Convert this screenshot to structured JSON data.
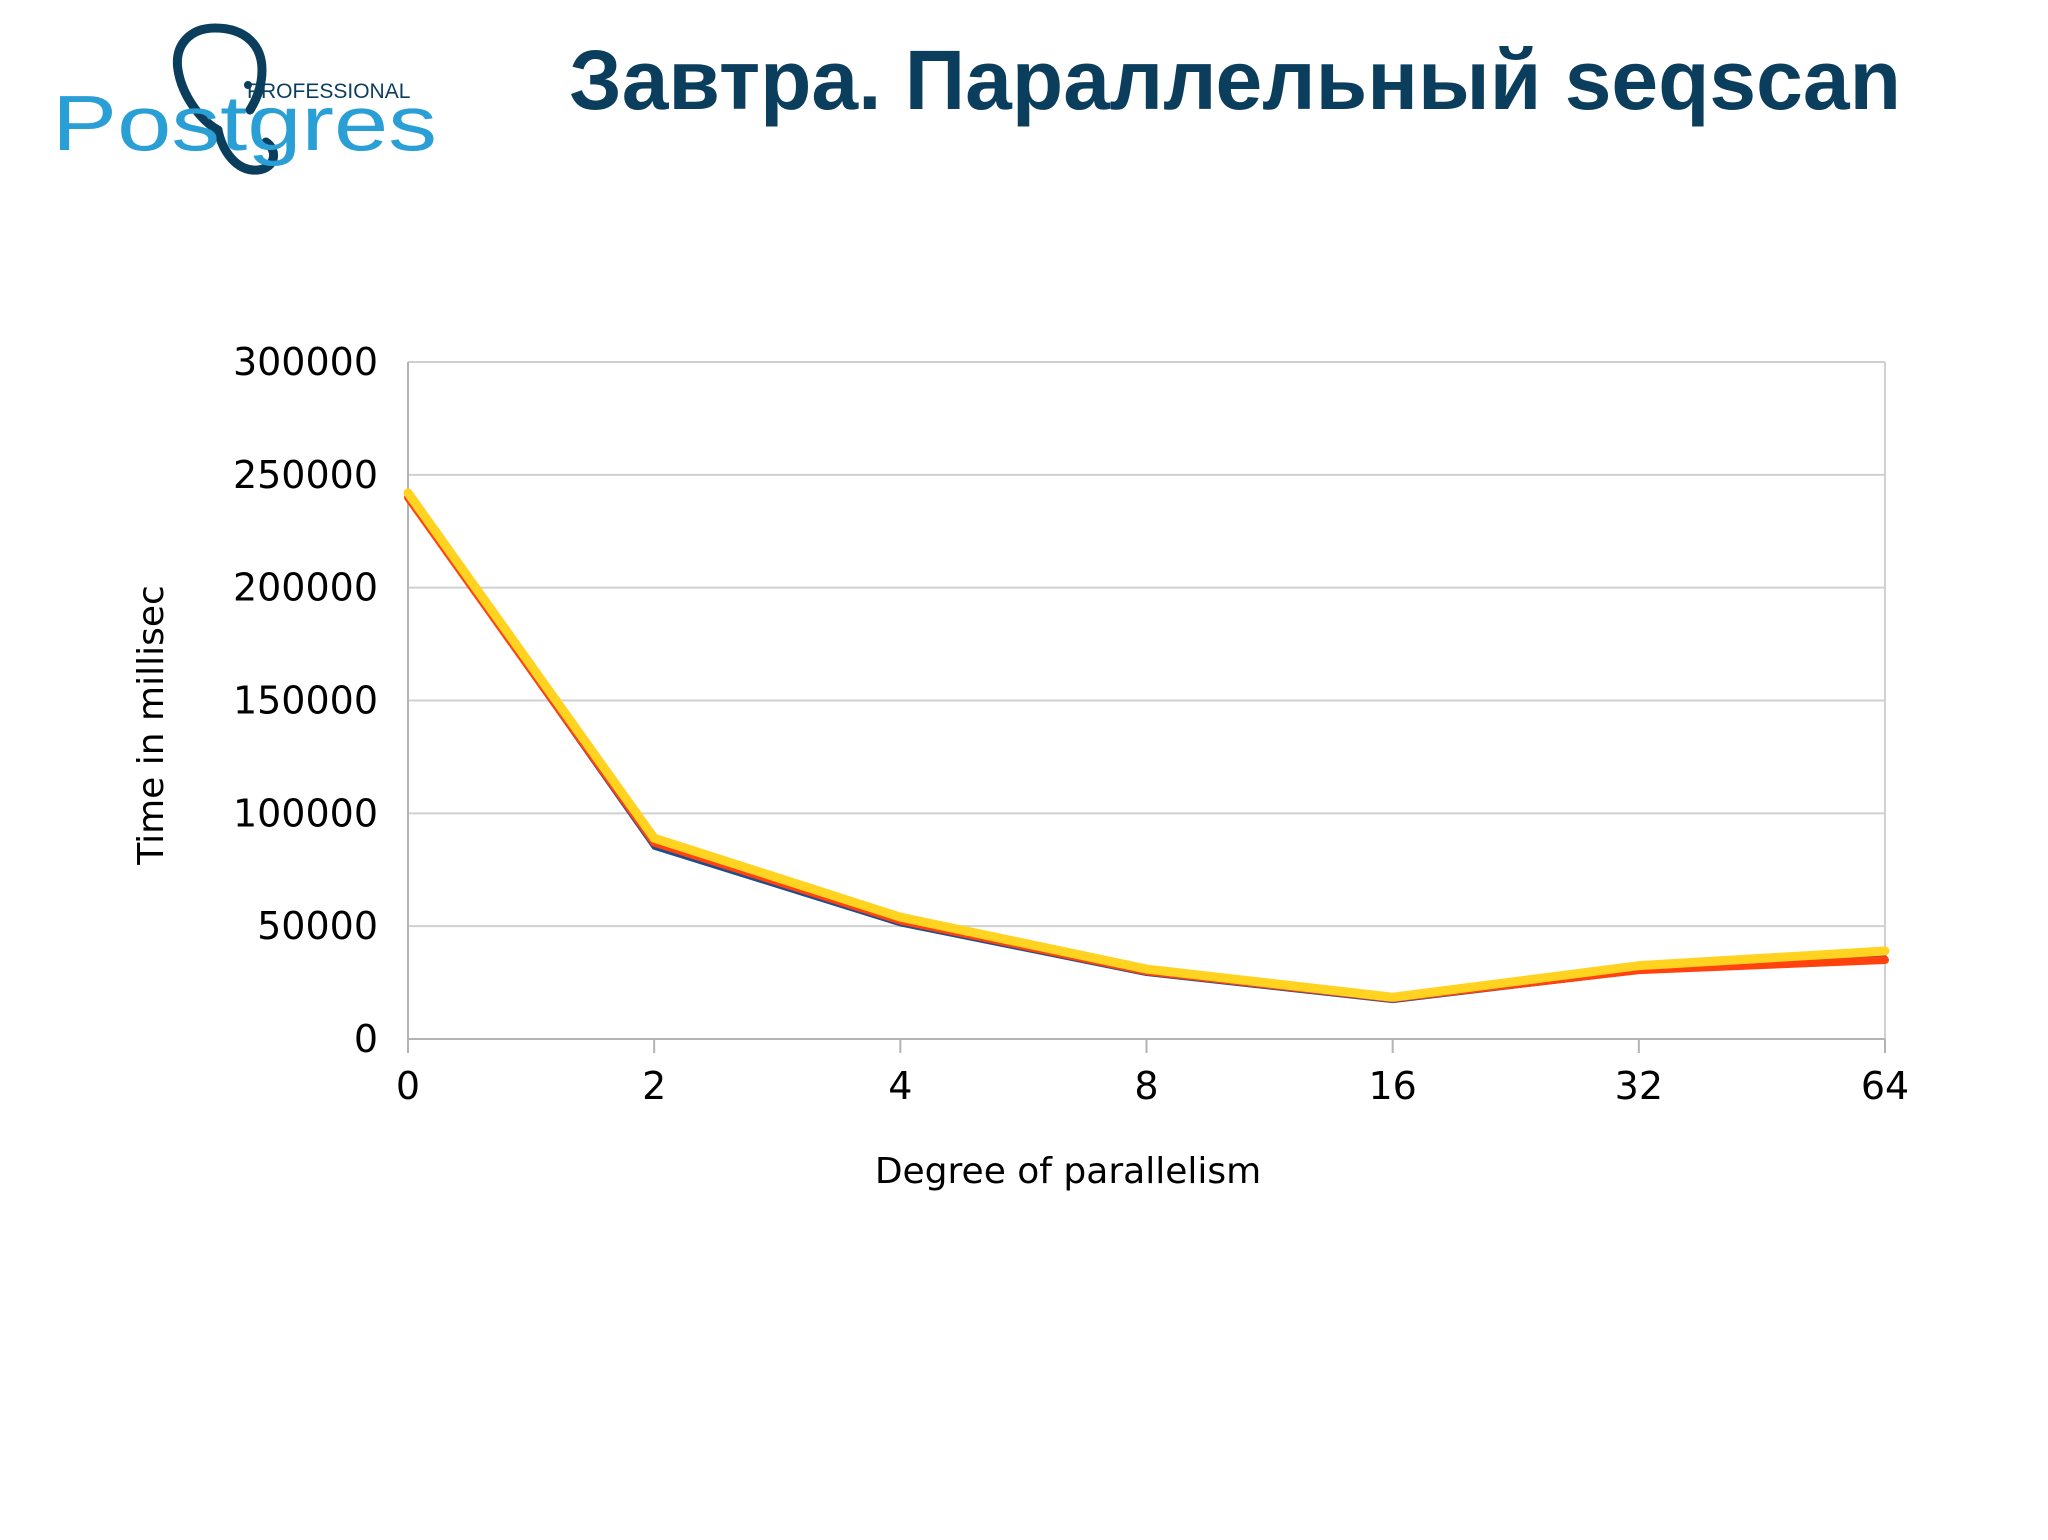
{
  "header": {
    "title": "Завтра. Параллельный seqscan",
    "logo": {
      "professional": "PROFESSIONAL",
      "wordmark": "Postgres",
      "icon": "elephant-icon",
      "colors": {
        "dark": "#0b3d5c",
        "blue": "#2a9fd6"
      }
    }
  },
  "chart_data": {
    "type": "line",
    "title": "",
    "xlabel": "Degree of parallelism",
    "ylabel": "Time in millisec",
    "categories": [
      "0",
      "2",
      "4",
      "8",
      "16",
      "32",
      "64"
    ],
    "ylim": [
      0,
      300000
    ],
    "yticks": [
      "0",
      "50000",
      "100000",
      "150000",
      "200000",
      "250000",
      "300000"
    ],
    "grid": true,
    "legend": "none",
    "series": [
      {
        "color": "#1f4e8c",
        "values": [
          240000,
          85000,
          51000,
          29000,
          17000,
          30000,
          36000
        ]
      },
      {
        "color": "#ff420e",
        "values": [
          240000,
          87000,
          52500,
          30000,
          18000,
          30500,
          35000
        ]
      },
      {
        "color": "#ffd320",
        "values": [
          242000,
          89000,
          54000,
          31000,
          18500,
          32500,
          39000
        ]
      }
    ]
  }
}
